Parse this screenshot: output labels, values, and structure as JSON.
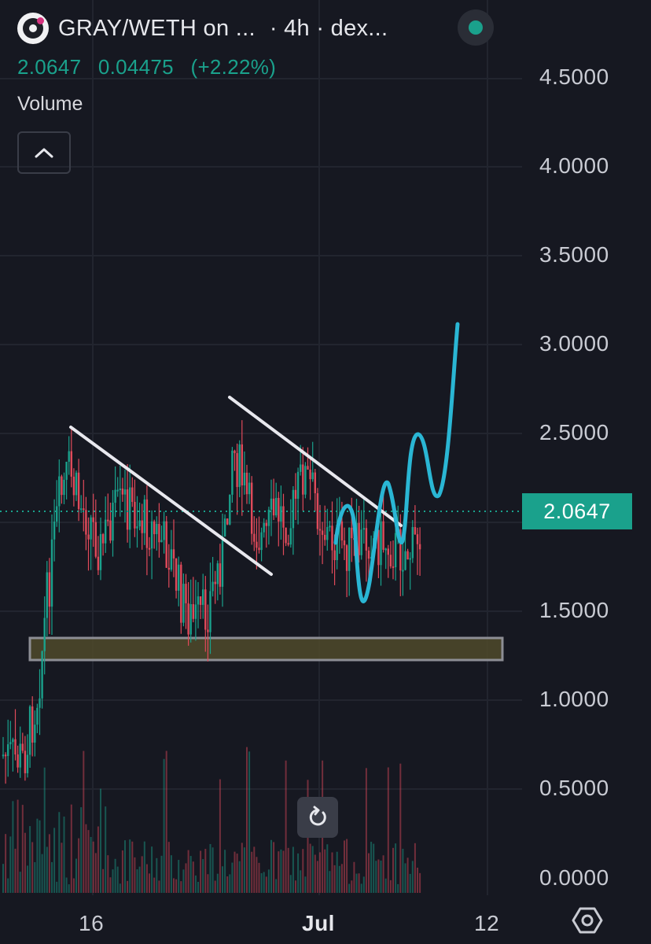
{
  "header": {
    "pair": "GRAY/WETH on ...",
    "interval": "· 4h · dex..."
  },
  "quote": {
    "price": "2.0647",
    "change": "0.04475",
    "change_pct": "(+2.22%)"
  },
  "indicator": {
    "label": "Volume"
  },
  "price_axis": {
    "ticks": [
      "4.5000",
      "4.0000",
      "3.5000",
      "3.0000",
      "2.5000",
      "1.5000",
      "1.0000",
      "0.5000",
      "0.0000"
    ],
    "last_price_badge": "2.0647"
  },
  "time_axis": {
    "ticks": [
      "16",
      "Jul",
      "12"
    ]
  },
  "icons": {
    "logo": "geckoterminal-logo-icon",
    "live": "live-status-dot-icon",
    "collapse": "chevron-up-icon",
    "reset": "reset-chart-icon",
    "settings": "settings-hexagon-icon"
  },
  "colors": {
    "background": "#161821",
    "up_candle": "#1aa18c",
    "down_candle": "#e04a5a",
    "trendlines": "#e8e8ee",
    "projection": "#2ab6d4",
    "support_zone": "#4f4a2a",
    "last_price": "#1aa18c"
  }
}
